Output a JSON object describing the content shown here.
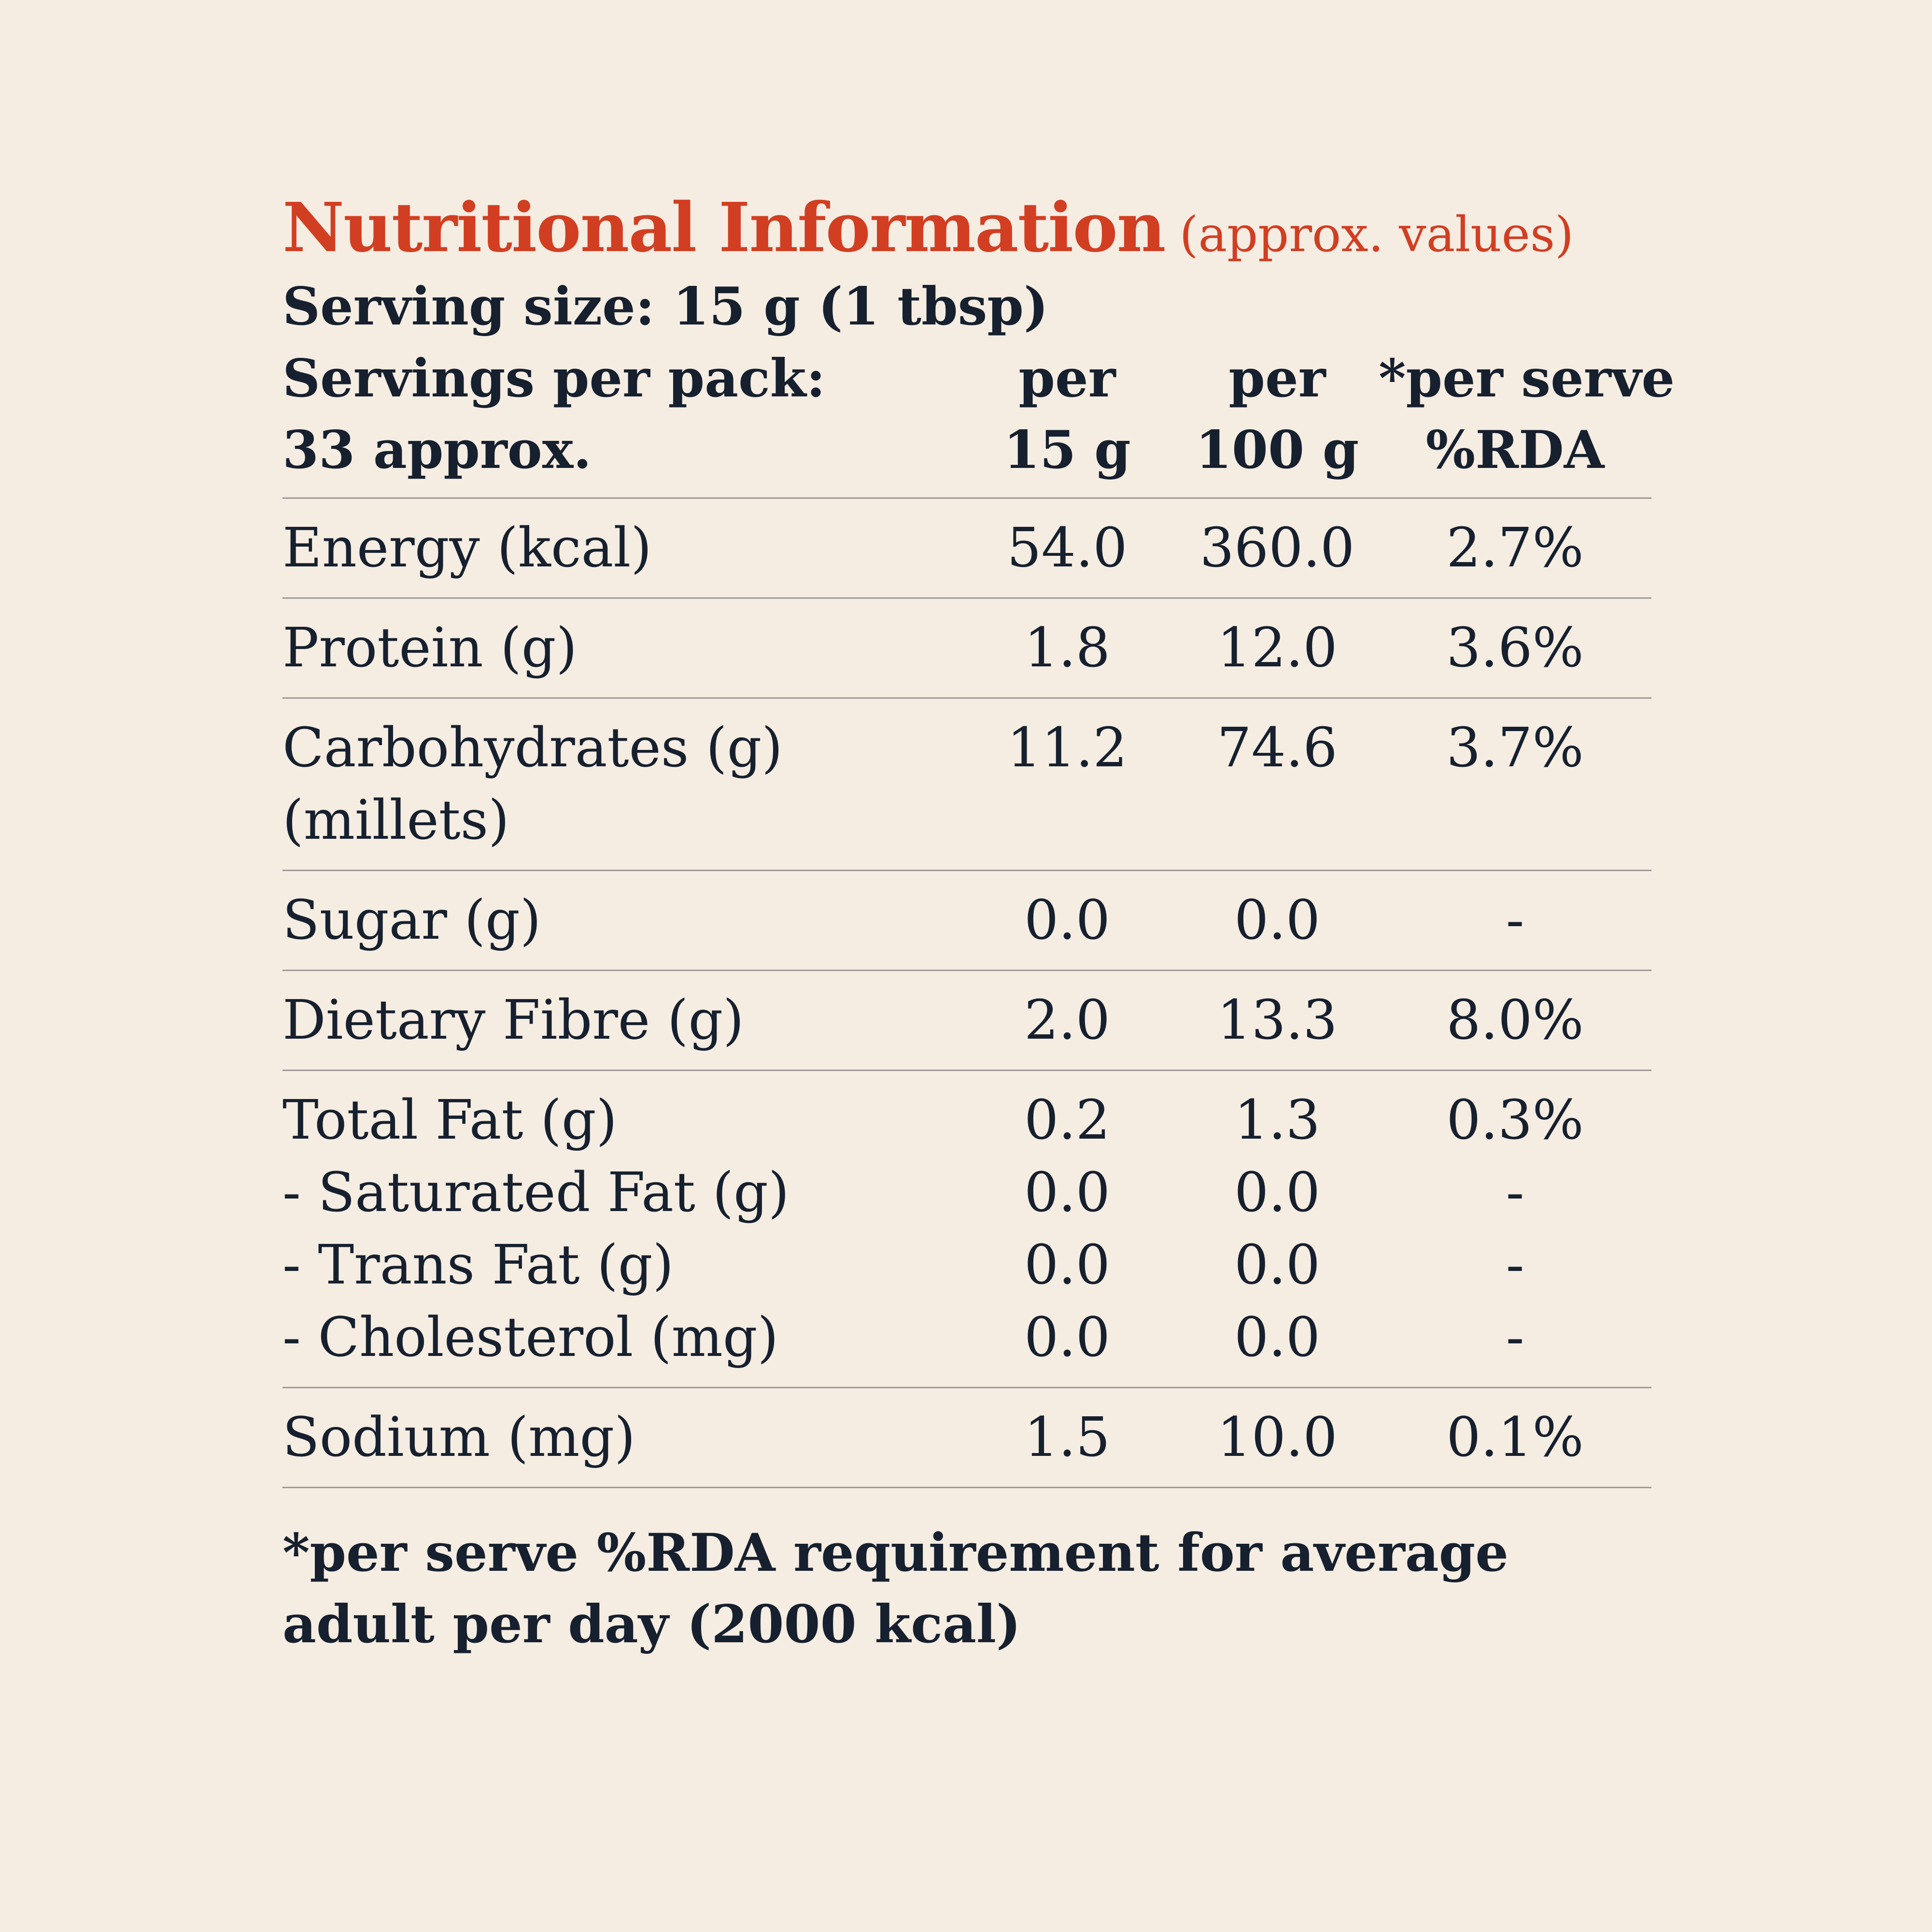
{
  "title": "Nutritional Information",
  "subtitle": "(approx. values)",
  "serving_size": "Serving size: 15 g (1 tbsp)",
  "header": {
    "servings_label_1": "Servings per pack:",
    "servings_label_2": "33 approx.",
    "col1_line1": "per",
    "col1_line2": "15 g",
    "col2_line1": "per",
    "col2_line2": "100 g",
    "col3_line1": "*per serve",
    "col3_line2": "%RDA"
  },
  "rows": [
    {
      "name": "Energy (kcal)",
      "per15": "54.0",
      "per100": "360.0",
      "rda": "2.7%"
    },
    {
      "name": "Protein (g)",
      "per15": "1.8",
      "per100": "12.0",
      "rda": "3.6%"
    },
    {
      "name": "Carbohydrates (g)",
      "name2": "(millets)",
      "per15": "11.2",
      "per100": "74.6",
      "rda": "3.7%"
    },
    {
      "name": "Sugar (g)",
      "per15": "0.0",
      "per100": "0.0",
      "rda": "-"
    },
    {
      "name": "Dietary Fibre (g)",
      "per15": "2.0",
      "per100": "13.3",
      "rda": "8.0%"
    }
  ],
  "fat_group": [
    {
      "name": "Total Fat (g)",
      "per15": "0.2",
      "per100": "1.3",
      "rda": "0.3%"
    },
    {
      "name": "- Saturated Fat (g)",
      "per15": "0.0",
      "per100": "0.0",
      "rda": "-"
    },
    {
      "name": "- Trans Fat (g)",
      "per15": "0.0",
      "per100": "0.0",
      "rda": "-"
    },
    {
      "name": "- Cholesterol (mg)",
      "per15": "0.0",
      "per100": "0.0",
      "rda": "-"
    }
  ],
  "sodium": {
    "name": "Sodium (mg)",
    "per15": "1.5",
    "per100": "10.0",
    "rda": "0.1%"
  },
  "footnote_1": "*per serve %RDA requirement for average",
  "footnote_2": "adult per day (2000 kcal)"
}
